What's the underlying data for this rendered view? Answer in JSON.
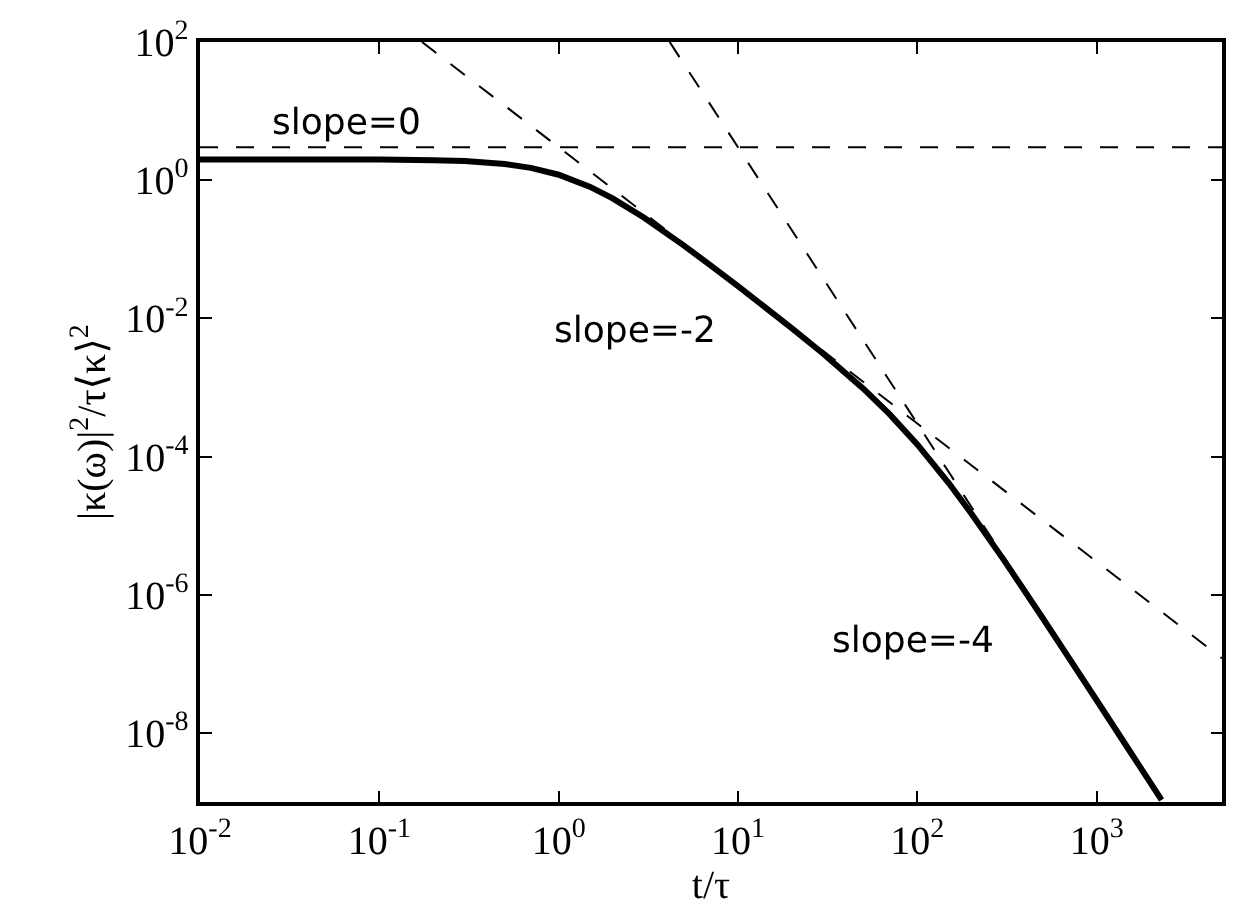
{
  "chart_data": {
    "type": "line",
    "xlabel": "t/τ",
    "ylabel": "|κ(ω)|$^{2}$/τ⟨κ⟩$^{2}$",
    "log": "xy",
    "grid": false,
    "marker": "none",
    "xlim": [
      0.01,
      5000
    ],
    "ylim": [
      1e-09,
      100
    ],
    "xticks": [
      {
        "value": 0.01,
        "label": "10$^{-2}$"
      },
      {
        "value": 0.1,
        "label": "10$^{-1}$"
      },
      {
        "value": 1,
        "label": "10$^{0}$"
      },
      {
        "value": 10,
        "label": "10$^{1}$"
      },
      {
        "value": 100,
        "label": "10$^{2}$"
      },
      {
        "value": 1000,
        "label": "10$^{3}$"
      }
    ],
    "yticks": [
      {
        "value": 1e-08,
        "label": "10$^{-8}$"
      },
      {
        "value": 1e-06,
        "label": "10$^{-6}$"
      },
      {
        "value": 0.0001,
        "label": "10$^{-4}$"
      },
      {
        "value": 0.01,
        "label": "10$^{-2}$"
      },
      {
        "value": 1,
        "label": "10$^{0}$"
      },
      {
        "value": 100,
        "label": "10$^{2}$"
      }
    ],
    "series": [
      {
        "color": "#000000",
        "line_style": "solid",
        "x": [
          0.01,
          0.1,
          0.2,
          0.3,
          0.5,
          0.7,
          1,
          1.5,
          2,
          3,
          5,
          7,
          10,
          20,
          30,
          50,
          70,
          100,
          150,
          200,
          300,
          500,
          700,
          1000,
          1500,
          2000,
          2300
        ],
        "values": [
          2.0,
          1.987,
          1.948,
          1.887,
          1.714,
          1.508,
          1.2,
          0.8,
          0.545,
          0.2855,
          0.1129,
          0.0591,
          0.02926,
          0.00718,
          0.003053,
          0.000959,
          0.000411,
          0.00015,
          4.1e-05,
          1.5e-05,
          3.33e-06,
          4.6e-07,
          1.22e-07,
          2.97e-08,
          5.9e-09,
          1.87e-09,
          1.07e-09
        ]
      },
      {
        "color": "#000000",
        "line_style": "dashed",
        "x": [
          0.01,
          5000
        ],
        "values": [
          3,
          3
        ]
      },
      {
        "color": "#000000",
        "line_style": "dashed",
        "x": [
          0.173,
          1,
          10,
          100,
          1000,
          5000
        ],
        "values": [
          100,
          3,
          0.03,
          0.0003,
          3e-06,
          1.2e-07
        ]
      },
      {
        "color": "#000000",
        "line_style": "dashed",
        "x": [
          4.16,
          10,
          100,
          1000,
          2300
        ],
        "values": [
          100,
          3,
          0.0003,
          3e-08,
          1.07e-09
        ]
      }
    ],
    "annotations": [
      "slope=0",
      "slope=-2",
      "slope=-4"
    ]
  }
}
